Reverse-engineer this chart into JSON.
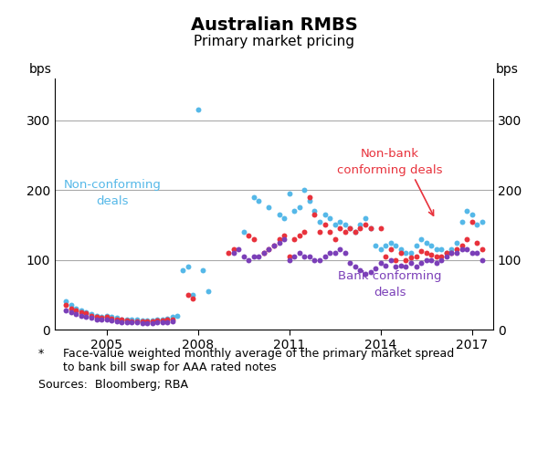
{
  "title": "Australian RMBS",
  "subtitle": "Primary market pricing",
  "ylabel_left": "bps",
  "ylabel_right": "bps",
  "ylim": [
    0,
    360
  ],
  "yticks": [
    0,
    100,
    200,
    300
  ],
  "footnote_star": "*",
  "footnote_line1": "Face-value weighted monthly average of the primary market spread",
  "footnote_line2": "to bank bill swap for AAA rated notes",
  "footnote_sources": "Sources:  Bloomberg; RBA",
  "background_color": "#ffffff",
  "grid_color": "#aaaaaa",
  "nonconforming_color": "#55b8e8",
  "nonbank_conforming_color": "#e8323c",
  "bank_conforming_color": "#7b3fb8",
  "nonconforming_label": "Non-conforming\ndeals",
  "nonbank_conforming_label": "Non-bank\nconforming deals",
  "bank_conforming_label": "Bank conforming\ndeals",
  "nonconforming_x": [
    2003.67,
    2003.83,
    2004.0,
    2004.17,
    2004.33,
    2004.5,
    2004.67,
    2004.83,
    2005.0,
    2005.17,
    2005.33,
    2005.5,
    2005.67,
    2005.83,
    2006.0,
    2006.17,
    2006.33,
    2006.5,
    2006.67,
    2006.83,
    2007.0,
    2007.17,
    2007.33,
    2007.5,
    2007.67,
    2007.83,
    2008.0,
    2008.17,
    2008.33,
    2009.5,
    2009.83,
    2010.0,
    2010.33,
    2010.67,
    2010.83,
    2011.0,
    2011.17,
    2011.33,
    2011.5,
    2011.67,
    2011.83,
    2012.0,
    2012.17,
    2012.33,
    2012.5,
    2012.67,
    2012.83,
    2013.0,
    2013.17,
    2013.33,
    2013.5,
    2013.67,
    2013.83,
    2014.0,
    2014.17,
    2014.33,
    2014.5,
    2014.67,
    2014.83,
    2015.0,
    2015.17,
    2015.33,
    2015.5,
    2015.67,
    2015.83,
    2016.0,
    2016.17,
    2016.33,
    2016.5,
    2016.67,
    2016.83,
    2017.0,
    2017.17,
    2017.33
  ],
  "nonconforming_y": [
    40,
    35,
    30,
    28,
    25,
    22,
    20,
    18,
    20,
    18,
    17,
    15,
    15,
    14,
    14,
    13,
    13,
    13,
    14,
    15,
    16,
    18,
    20,
    85,
    90,
    50,
    315,
    85,
    55,
    140,
    190,
    185,
    175,
    165,
    160,
    195,
    170,
    175,
    200,
    185,
    170,
    155,
    165,
    160,
    150,
    155,
    150,
    145,
    140,
    150,
    160,
    145,
    120,
    115,
    120,
    125,
    120,
    115,
    110,
    110,
    120,
    130,
    125,
    120,
    115,
    115,
    110,
    115,
    125,
    155,
    170,
    165,
    150,
    155
  ],
  "nonbank_conforming_x": [
    2003.67,
    2003.83,
    2004.0,
    2004.17,
    2004.33,
    2004.5,
    2004.67,
    2004.83,
    2005.0,
    2005.17,
    2005.33,
    2005.5,
    2005.67,
    2005.83,
    2006.0,
    2006.17,
    2006.33,
    2006.5,
    2006.67,
    2006.83,
    2007.0,
    2007.17,
    2007.67,
    2007.83,
    2009.0,
    2009.17,
    2009.67,
    2009.83,
    2010.17,
    2010.33,
    2010.5,
    2010.67,
    2010.83,
    2011.0,
    2011.17,
    2011.33,
    2011.5,
    2011.67,
    2011.83,
    2012.0,
    2012.17,
    2012.33,
    2012.5,
    2012.67,
    2012.83,
    2013.0,
    2013.17,
    2013.33,
    2013.5,
    2013.67,
    2014.0,
    2014.17,
    2014.33,
    2014.5,
    2014.67,
    2014.83,
    2015.0,
    2015.17,
    2015.33,
    2015.5,
    2015.67,
    2015.83,
    2016.0,
    2016.17,
    2016.33,
    2016.5,
    2016.67,
    2016.83,
    2017.0,
    2017.17,
    2017.33
  ],
  "nonbank_conforming_y": [
    35,
    30,
    28,
    25,
    23,
    20,
    18,
    17,
    18,
    16,
    15,
    14,
    13,
    12,
    12,
    12,
    12,
    12,
    13,
    13,
    14,
    15,
    50,
    45,
    110,
    115,
    135,
    130,
    110,
    115,
    120,
    130,
    135,
    105,
    130,
    135,
    140,
    190,
    165,
    140,
    150,
    140,
    130,
    145,
    140,
    145,
    140,
    145,
    150,
    145,
    145,
    105,
    115,
    100,
    110,
    100,
    103,
    105,
    112,
    110,
    108,
    105,
    105,
    110,
    110,
    115,
    120,
    130,
    155,
    125,
    115
  ],
  "bank_conforming_x": [
    2003.67,
    2003.83,
    2004.0,
    2004.17,
    2004.33,
    2004.5,
    2004.67,
    2004.83,
    2005.0,
    2005.17,
    2005.33,
    2005.5,
    2005.67,
    2005.83,
    2006.0,
    2006.17,
    2006.33,
    2006.5,
    2006.67,
    2006.83,
    2007.0,
    2007.17,
    2009.17,
    2009.33,
    2009.5,
    2009.67,
    2009.83,
    2010.0,
    2010.17,
    2010.33,
    2010.5,
    2010.67,
    2010.83,
    2011.0,
    2011.17,
    2011.33,
    2011.5,
    2011.67,
    2011.83,
    2012.0,
    2012.17,
    2012.33,
    2012.5,
    2012.67,
    2012.83,
    2013.0,
    2013.17,
    2013.33,
    2013.5,
    2013.67,
    2013.83,
    2014.0,
    2014.17,
    2014.33,
    2014.5,
    2014.67,
    2014.83,
    2015.0,
    2015.17,
    2015.33,
    2015.5,
    2015.67,
    2015.83,
    2016.0,
    2016.17,
    2016.33,
    2016.5,
    2016.67,
    2016.83,
    2017.0,
    2017.17,
    2017.33
  ],
  "bank_conforming_y": [
    28,
    25,
    22,
    20,
    18,
    17,
    15,
    14,
    14,
    13,
    12,
    11,
    10,
    10,
    10,
    9,
    9,
    9,
    10,
    10,
    11,
    12,
    110,
    115,
    105,
    100,
    105,
    105,
    110,
    115,
    120,
    125,
    130,
    100,
    105,
    110,
    105,
    105,
    100,
    100,
    105,
    110,
    110,
    115,
    110,
    95,
    90,
    85,
    80,
    82,
    88,
    95,
    92,
    100,
    90,
    92,
    90,
    95,
    90,
    95,
    100,
    100,
    95,
    100,
    105,
    110,
    110,
    115,
    115,
    110,
    110,
    100
  ]
}
